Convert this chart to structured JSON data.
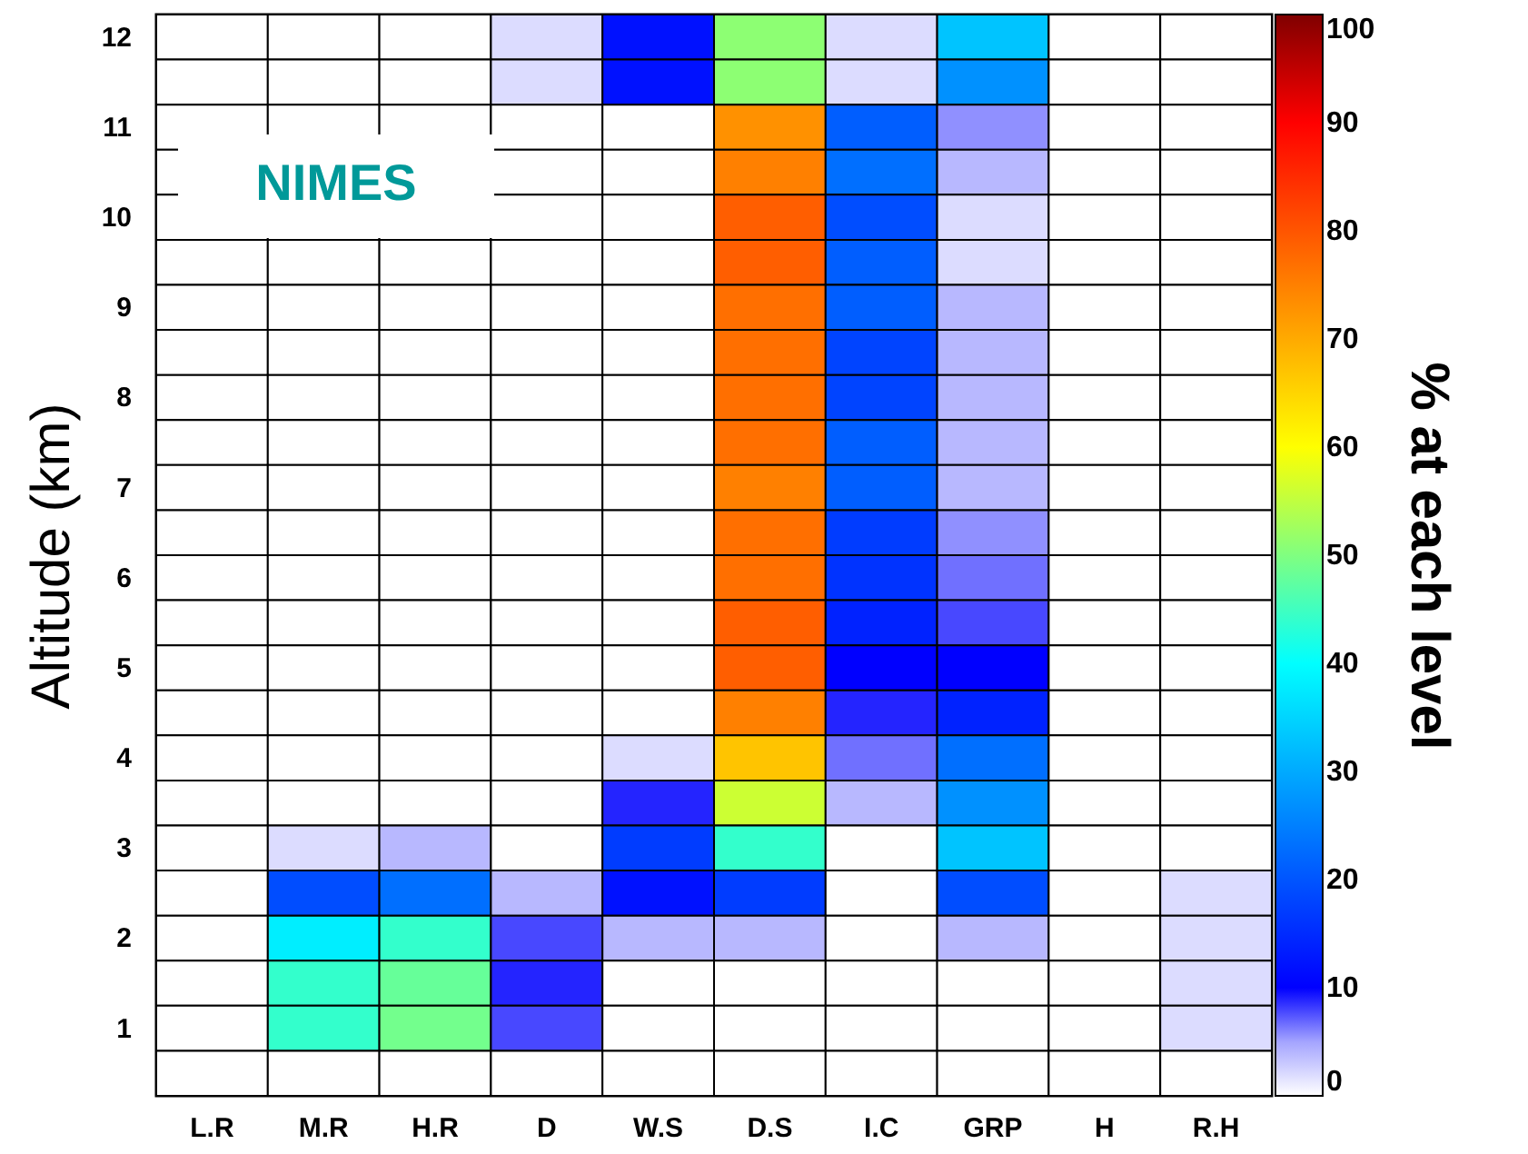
{
  "chart_data": {
    "type": "heatmap",
    "ylabel": "Altitude (km)",
    "clabel": "% at each level",
    "annotations": [
      "NIMES"
    ],
    "categories": [
      "L.R",
      "M.R",
      "H.R",
      "D",
      "W.S",
      "D.S",
      "I.C",
      "GRP",
      "H",
      "R.H"
    ],
    "y_categories": [
      "12",
      null,
      "11",
      null,
      "10",
      null,
      "9",
      null,
      "8",
      null,
      "7",
      null,
      "6",
      null,
      "5",
      null,
      "4",
      null,
      "3",
      null,
      "2",
      null,
      "1",
      null
    ],
    "cells": [
      [
        0,
        0,
        0,
        2,
        12,
        51,
        2,
        33,
        0,
        0
      ],
      [
        0,
        0,
        0,
        2,
        12,
        51,
        2,
        27,
        0,
        0
      ],
      [
        0,
        0,
        0,
        0,
        0,
        73,
        21,
        6,
        0,
        0
      ],
      [
        0,
        0,
        0,
        0,
        0,
        75,
        23,
        4,
        0,
        0
      ],
      [
        0,
        0,
        0,
        0,
        0,
        79,
        19,
        2,
        0,
        0
      ],
      [
        0,
        0,
        0,
        0,
        0,
        79,
        21,
        2,
        0,
        0
      ],
      [
        0,
        0,
        0,
        0,
        0,
        77,
        21,
        4,
        0,
        0
      ],
      [
        0,
        0,
        0,
        0,
        0,
        77,
        18,
        4,
        0,
        0
      ],
      [
        0,
        0,
        0,
        0,
        0,
        77,
        18,
        4,
        0,
        0
      ],
      [
        0,
        0,
        0,
        0,
        0,
        77,
        21,
        4,
        0,
        0
      ],
      [
        0,
        0,
        0,
        0,
        0,
        75,
        21,
        4,
        0,
        0
      ],
      [
        0,
        0,
        0,
        0,
        0,
        77,
        17,
        6,
        0,
        0
      ],
      [
        0,
        0,
        0,
        0,
        0,
        77,
        16,
        7,
        0,
        0
      ],
      [
        0,
        0,
        0,
        0,
        0,
        79,
        14,
        8,
        0,
        0
      ],
      [
        0,
        0,
        0,
        0,
        0,
        79,
        10,
        10,
        0,
        0
      ],
      [
        0,
        0,
        0,
        0,
        0,
        75,
        9,
        14,
        0,
        0
      ],
      [
        0,
        0,
        0,
        0,
        2,
        67,
        7,
        23,
        0,
        0
      ],
      [
        0,
        0,
        0,
        0,
        9,
        56,
        4,
        27,
        0,
        0
      ],
      [
        0,
        2,
        4,
        0,
        17,
        44,
        0,
        33,
        0,
        0
      ],
      [
        0,
        19,
        23,
        4,
        12,
        17,
        0,
        19,
        0,
        2
      ],
      [
        0,
        38,
        44,
        8,
        4,
        4,
        0,
        4,
        0,
        2
      ],
      [
        0,
        44,
        48,
        9,
        0,
        0,
        0,
        0,
        0,
        2
      ],
      [
        0,
        44,
        49,
        8,
        0,
        0,
        0,
        0,
        0,
        2
      ],
      [
        0,
        0,
        0,
        0,
        0,
        0,
        0,
        0,
        0,
        0
      ]
    ],
    "clim": [
      0,
      100
    ],
    "cticks": [
      0,
      10,
      20,
      30,
      40,
      50,
      60,
      70,
      80,
      90,
      100
    ]
  }
}
